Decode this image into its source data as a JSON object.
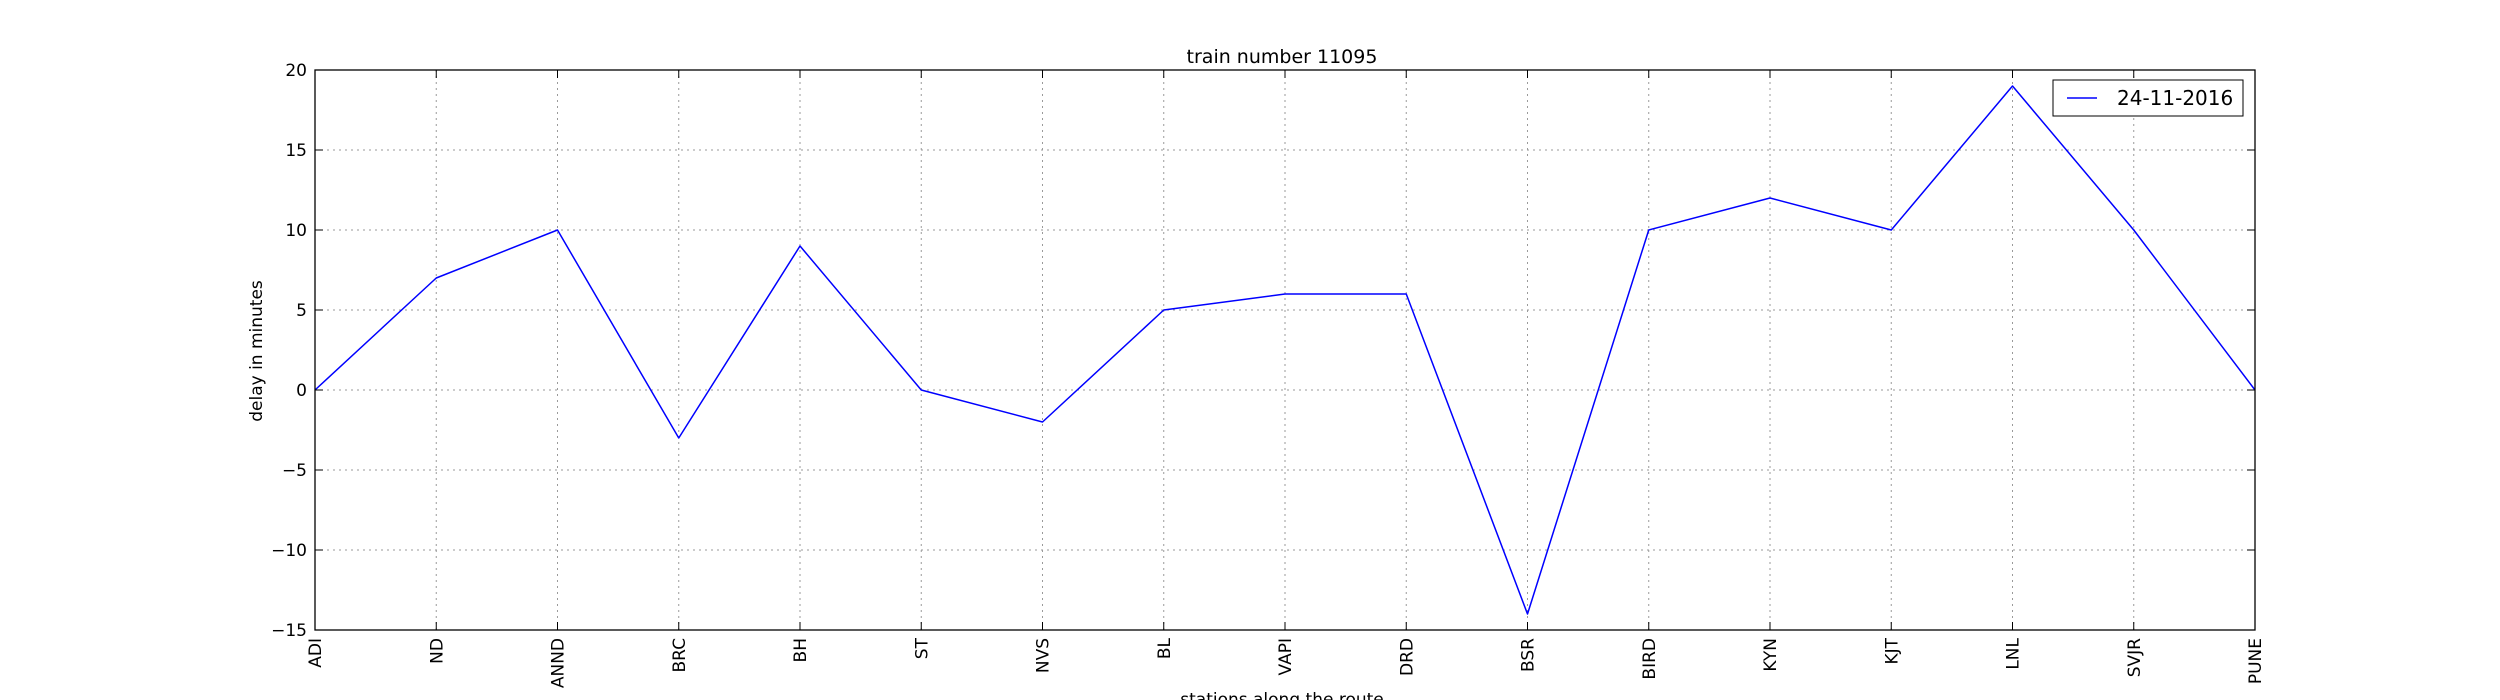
{
  "chart_data": {
    "type": "line",
    "title": "train number 11095",
    "xlabel": "stations along the route",
    "ylabel": "delay in minutes",
    "categories": [
      "ADI",
      "ND",
      "ANND",
      "BRC",
      "BH",
      "ST",
      "NVS",
      "BL",
      "VAPI",
      "DRD",
      "BSR",
      "BIRD",
      "KYN",
      "KJT",
      "LNL",
      "SVJR",
      "PUNE"
    ],
    "series": [
      {
        "name": "24-11-2016",
        "values": [
          0,
          7,
          10,
          -3,
          9,
          0,
          -2,
          5,
          6,
          6,
          -14,
          10,
          12,
          10,
          19,
          10,
          0
        ],
        "color": "#0000ff"
      }
    ],
    "ylim": [
      -15,
      20
    ],
    "yticks": [
      -15,
      -10,
      -5,
      0,
      5,
      10,
      15,
      20
    ],
    "ytick_labels": [
      "−15",
      "−10",
      "−5",
      "0",
      "5",
      "10",
      "15",
      "20"
    ],
    "grid": true,
    "legend_position": "top-right"
  }
}
